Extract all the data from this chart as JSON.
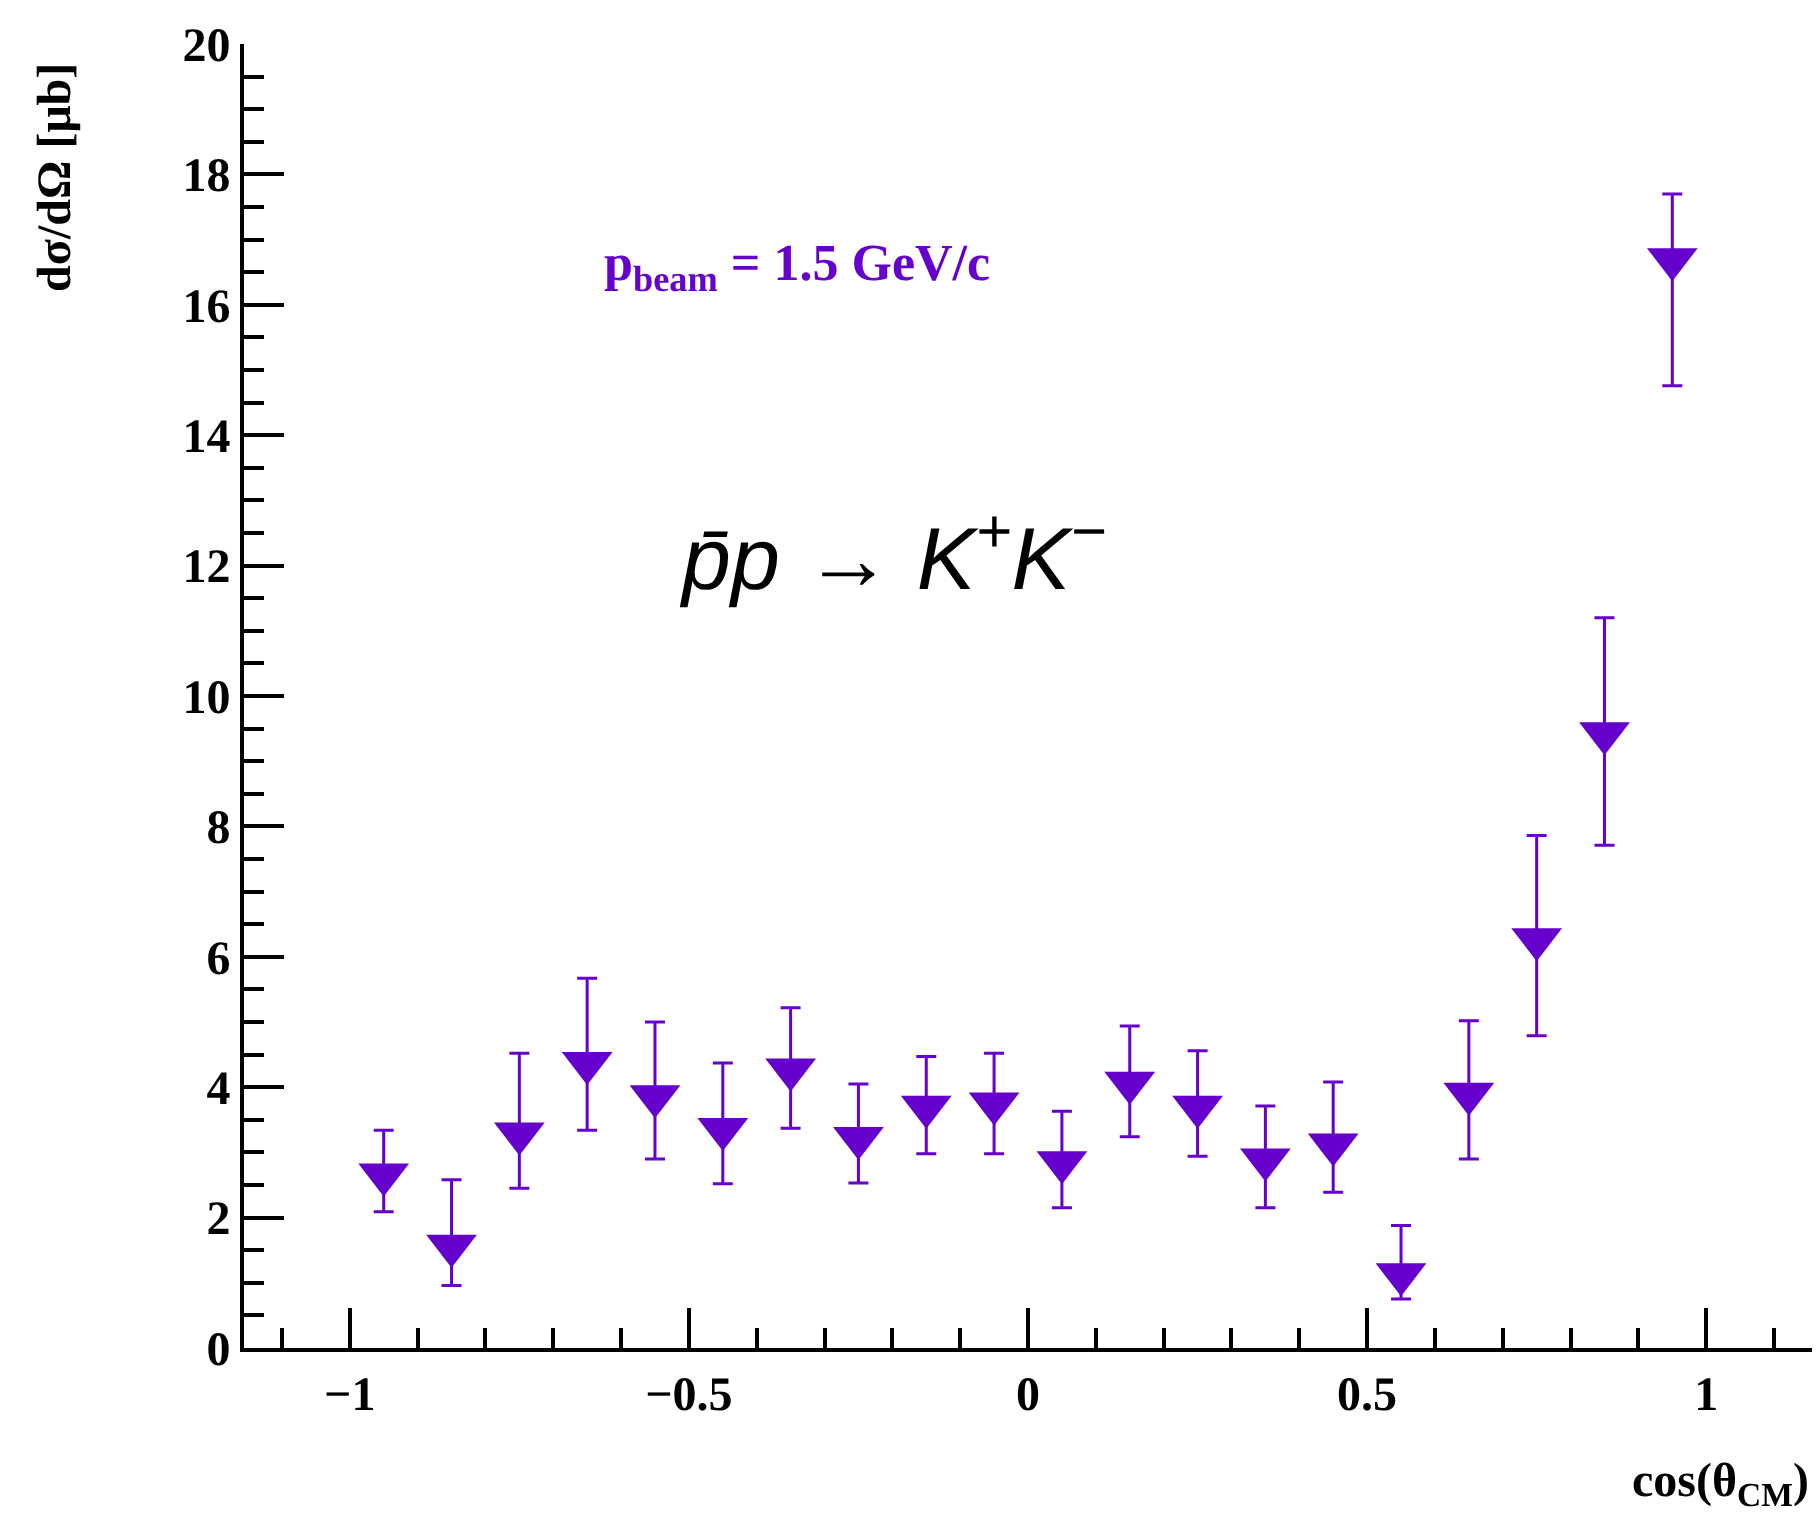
{
  "chart_data": {
    "type": "scatter",
    "xlabel": "cos(θ$_{CM}$)",
    "ylabel": "dσ/dΩ [μb]",
    "annotations": [
      "p$_{beam}$ = 1.5 GeV/c",
      "p̄p → K$^{+}$K$^{−}$"
    ],
    "x": [
      -0.95,
      -0.85,
      -0.75,
      -0.65,
      -0.55,
      -0.45,
      -0.35,
      -0.25,
      -0.15,
      -0.05,
      0.05,
      0.15,
      0.25,
      0.35,
      0.45,
      0.55,
      0.65,
      0.75,
      0.85,
      0.95
    ],
    "series": [
      {
        "color": "#6600cc",
        "values": [
          2.66,
          1.57,
          3.29,
          4.37,
          3.86,
          3.36,
          4.27,
          3.22,
          3.7,
          3.75,
          2.85,
          4.07,
          3.7,
          2.89,
          3.12,
          1.13,
          3.9,
          6.27,
          9.43,
          16.7
        ],
        "errors": [
          [
            2.09,
            3.34
          ],
          [
            0.96,
            2.58
          ],
          [
            2.45,
            4.52
          ],
          [
            3.34,
            5.67
          ],
          [
            2.9,
            5.0
          ],
          [
            2.52,
            4.37
          ],
          [
            3.37,
            5.22
          ],
          [
            2.53,
            4.05
          ],
          [
            2.98,
            4.47
          ],
          [
            2.98,
            4.52
          ],
          [
            2.15,
            3.63
          ],
          [
            3.24,
            4.94
          ],
          [
            2.94,
            4.56
          ],
          [
            2.15,
            3.71
          ],
          [
            2.39,
            4.08
          ],
          [
            0.75,
            1.88
          ],
          [
            2.9,
            5.02
          ],
          [
            4.79,
            7.86
          ],
          [
            7.71,
            11.2
          ],
          [
            14.76,
            17.7
          ]
        ]
      }
    ],
    "marker": "triangle-down-fix",
    "xlim": [
      -1.156,
      1.156
    ],
    "xticks": [
      {
        "value": -1,
        "label": "−1"
      },
      {
        "value": -0.5,
        "label": "−0.5"
      },
      0,
      0.5,
      1
    ],
    "ylim": [
      0,
      20
    ],
    "yticks": [
      0,
      2,
      4,
      6,
      8,
      10,
      12,
      14,
      16,
      18,
      20
    ]
  }
}
